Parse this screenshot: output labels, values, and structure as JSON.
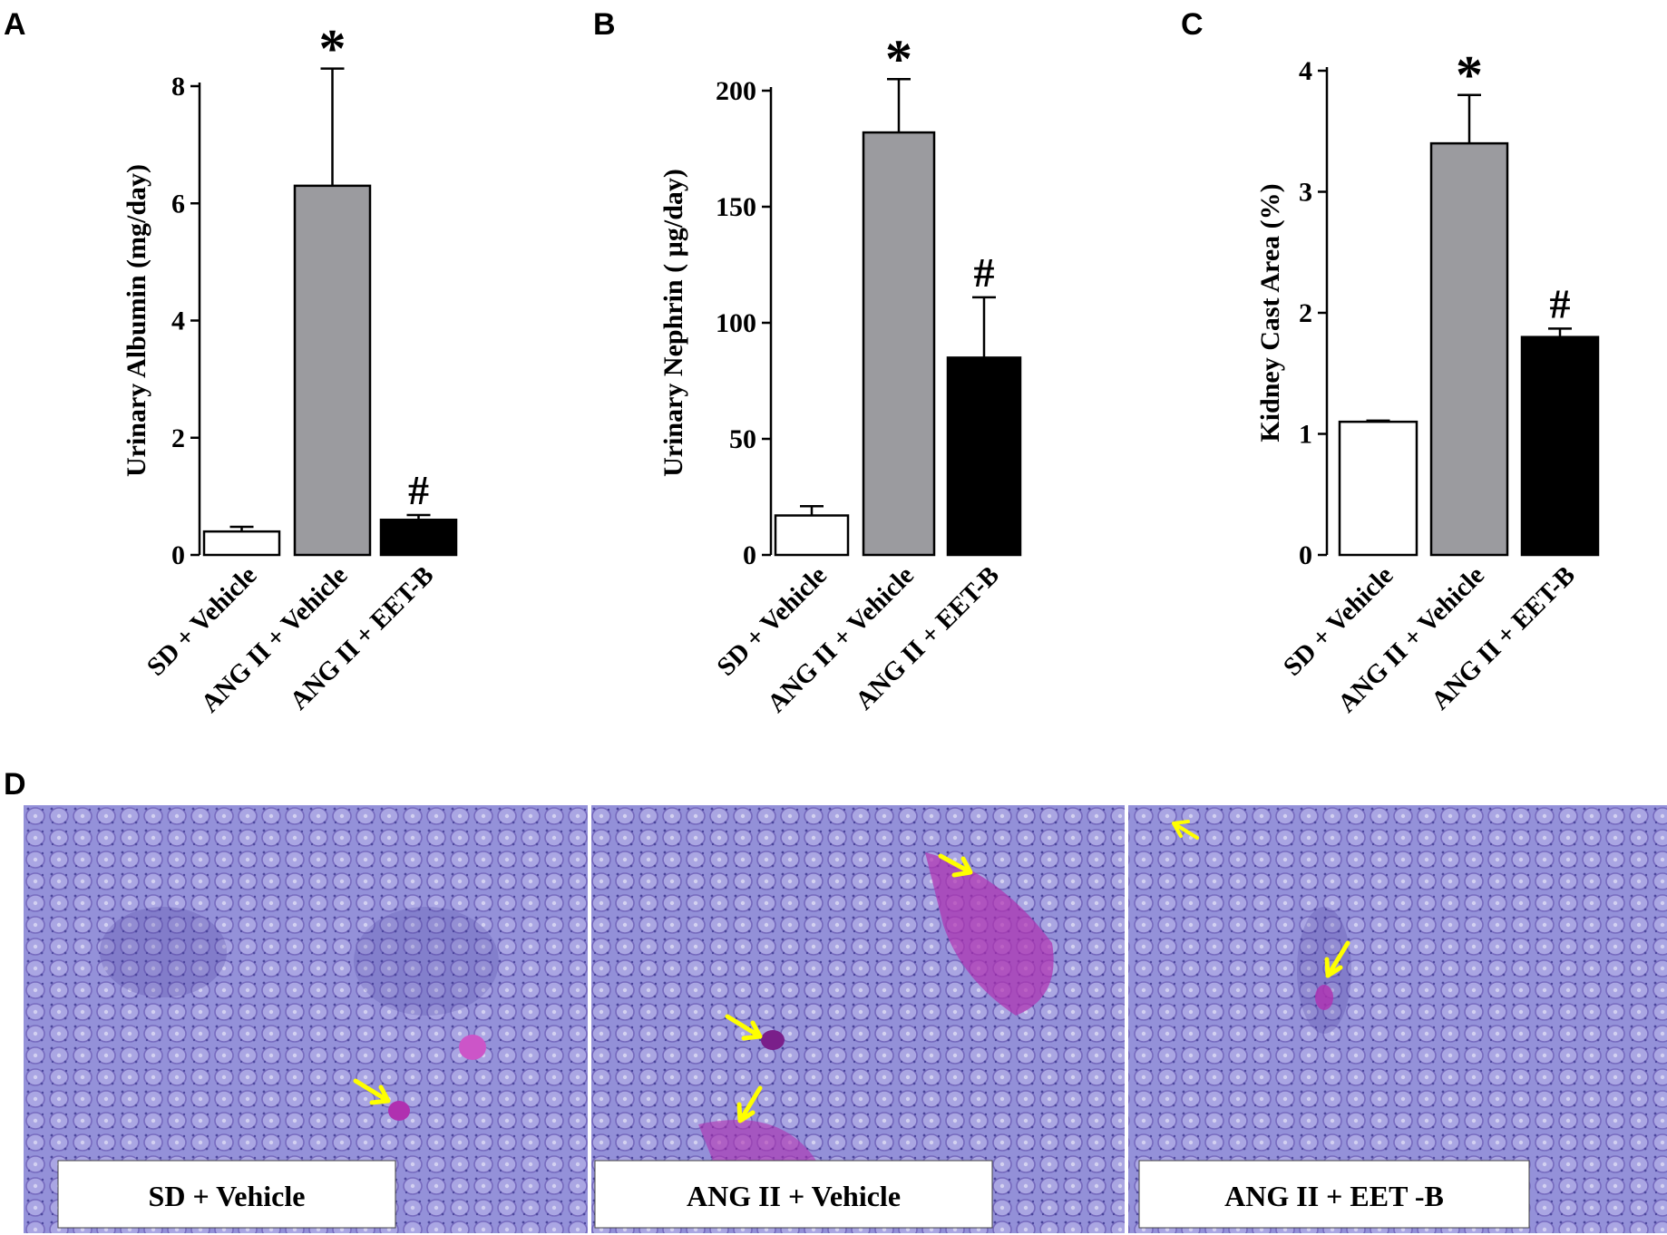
{
  "chart_data": [
    {
      "type": "bar",
      "panel_label": "A",
      "ylabel": "Urinary Albumin (mg/day)",
      "categories": [
        "SD + Vehicle",
        "ANG II + Vehicle",
        "ANG II + EET-B"
      ],
      "values": [
        0.4,
        6.3,
        0.6
      ],
      "errors": [
        0.08,
        2.0,
        0.08
      ],
      "markers": [
        "",
        "*",
        "#"
      ],
      "ylim": [
        0,
        8
      ],
      "yticks": [
        0,
        2,
        4,
        6,
        8
      ],
      "bar_colors": [
        "#ffffff",
        "#9b9b9f",
        "#000000"
      ],
      "grid": false,
      "legend": "none"
    },
    {
      "type": "bar",
      "panel_label": "B",
      "ylabel": "Urinary Nephrin ( µg/day)",
      "categories": [
        "SD + Vehicle",
        "ANG II + Vehicle",
        "ANG II + EET-B"
      ],
      "values": [
        17,
        182,
        85
      ],
      "errors": [
        4,
        23,
        26
      ],
      "markers": [
        "",
        "*",
        "#"
      ],
      "ylim": [
        0,
        200
      ],
      "yticks": [
        0,
        50,
        100,
        150,
        200
      ],
      "bar_colors": [
        "#ffffff",
        "#9b9b9f",
        "#000000"
      ],
      "grid": false,
      "legend": "none"
    },
    {
      "type": "bar",
      "panel_label": "C",
      "ylabel": "Kidney Cast Area (%)",
      "categories": [
        "SD + Vehicle",
        "ANG II + Vehicle",
        "ANG II + EET-B"
      ],
      "values": [
        1.1,
        3.4,
        1.8
      ],
      "errors": [
        0.01,
        0.4,
        0.07
      ],
      "markers": [
        "",
        "*",
        "#"
      ],
      "ylim": [
        0,
        4
      ],
      "yticks": [
        0,
        1,
        2,
        3,
        4
      ],
      "bar_colors": [
        "#ffffff",
        "#9b9b9f",
        "#000000"
      ],
      "grid": false,
      "legend": "none"
    }
  ],
  "panel_d": {
    "label": "D",
    "images": [
      {
        "caption": "SD + Vehicle"
      },
      {
        "caption": "ANG II + Vehicle"
      },
      {
        "caption": "ANG II + EET -B"
      }
    ],
    "arrow_color": "#ffff00",
    "tissue_color": "#8a86d0",
    "stain_color": "#b030b0"
  }
}
